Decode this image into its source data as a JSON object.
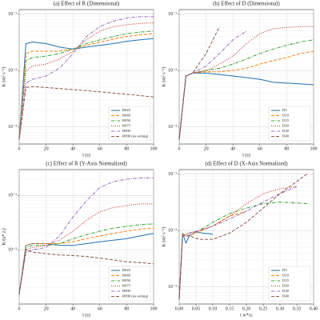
{
  "chart_data": [
    {
      "type": "line",
      "title": "(a) Effect of R (Dimensional)",
      "xlabel": "t (s)",
      "ylabel": "K (m² s⁻¹)",
      "log_y": true,
      "grid": true,
      "legend": "lower right",
      "xlim": [
        0,
        100
      ],
      "xticks": [
        0,
        20,
        40,
        60,
        80,
        100
      ],
      "ylim": [
        0.0005,
        0.12
      ],
      "yticks": [
        {
          "value": 0.001,
          "label": "10⁻³"
        },
        {
          "value": 0.01,
          "label": "10⁻²"
        },
        {
          "value": 0.1,
          "label": "10⁻¹"
        }
      ],
      "x": [
        0,
        5,
        10,
        20,
        30,
        40,
        50,
        60,
        70,
        80,
        90,
        100
      ],
      "series": [
        {
          "name": "R025",
          "color": "#1f6fb4",
          "linestyle": "solid",
          "values": [
            0.0006,
            0.03,
            0.032,
            0.03,
            0.026,
            0.024,
            0.026,
            0.028,
            0.03,
            0.033,
            0.035,
            0.037
          ]
        },
        {
          "name": "R040",
          "color": "#ff7f0e",
          "linestyle": "dashed",
          "values": [
            0.0006,
            0.02,
            0.022,
            0.022,
            0.022,
            0.024,
            0.028,
            0.032,
            0.036,
            0.04,
            0.043,
            0.045
          ]
        },
        {
          "name": "R050",
          "color": "#2ca02c",
          "linestyle": "dashdot",
          "values": [
            0.0006,
            0.015,
            0.017,
            0.018,
            0.02,
            0.024,
            0.03,
            0.035,
            0.04,
            0.045,
            0.048,
            0.05
          ]
        },
        {
          "name": "R075",
          "color": "#d62728",
          "linestyle": "dotted",
          "values": [
            0.0006,
            0.01,
            0.012,
            0.013,
            0.016,
            0.022,
            0.035,
            0.05,
            0.06,
            0.065,
            0.068,
            0.07
          ]
        },
        {
          "name": "R090",
          "color": "#9467bd",
          "linestyle": "dashdot",
          "values": [
            0.0006,
            0.006,
            0.007,
            0.008,
            0.011,
            0.02,
            0.04,
            0.06,
            0.075,
            0.085,
            0.09,
            0.09
          ]
        },
        {
          "name": "R090 (no setting)",
          "color": "#8c564b",
          "linestyle": "dashed",
          "values": [
            0.0006,
            0.005,
            0.0052,
            0.005,
            0.0048,
            0.0046,
            0.0044,
            0.0042,
            0.004,
            0.0038,
            0.0036,
            0.0034
          ]
        }
      ]
    },
    {
      "type": "line",
      "title": "(b) Effect of D (Dimensional)",
      "xlabel": "t (s)",
      "ylabel": "K (m² s⁻¹)",
      "log_y": true,
      "grid": true,
      "legend": "lower right",
      "xlim": [
        0,
        100
      ],
      "xticks": [
        0,
        20,
        40,
        60,
        80,
        100
      ],
      "ylim": [
        0.0005,
        0.12
      ],
      "yticks": [
        {
          "value": 0.001,
          "label": "10⁻³"
        },
        {
          "value": 0.01,
          "label": "10⁻²"
        },
        {
          "value": 0.1,
          "label": "10⁻¹"
        }
      ],
      "x": [
        0,
        5,
        10,
        20,
        30,
        40,
        50,
        60,
        70,
        80,
        90,
        100
      ],
      "series": [
        {
          "name": "D5",
          "color": "#1f6fb4",
          "linestyle": "solid",
          "values": [
            0.0006,
            0.008,
            0.009,
            0.009,
            0.0085,
            0.008,
            0.0075,
            0.007,
            0.0062,
            0.006,
            0.0058,
            0.0056
          ]
        },
        {
          "name": "D10",
          "color": "#ff7f0e",
          "linestyle": "dashed",
          "values": [
            0.0006,
            0.008,
            0.009,
            0.0095,
            0.0095,
            0.01,
            0.011,
            0.013,
            0.015,
            0.017,
            0.02,
            0.022
          ]
        },
        {
          "name": "D15",
          "color": "#2ca02c",
          "linestyle": "dashdot",
          "values": [
            0.0006,
            0.008,
            0.009,
            0.01,
            0.011,
            0.013,
            0.016,
            0.02,
            0.024,
            0.028,
            0.032,
            0.035
          ]
        },
        {
          "name": "D20",
          "color": "#d62728",
          "linestyle": "dotted",
          "values": [
            0.0006,
            0.008,
            0.009,
            0.01,
            0.013,
            0.018,
            0.03,
            0.045,
            0.055,
            0.058,
            0.06,
            0.06
          ]
        },
        {
          "name": "D30",
          "color": "#9467bd",
          "linestyle": "dashdot",
          "values": [
            0.0006,
            0.008,
            0.009,
            0.012,
            0.02,
            0.035,
            0.05,
            null,
            null,
            null,
            null,
            null
          ]
        },
        {
          "name": "D40",
          "color": "#8c564b",
          "linestyle": "dashed",
          "values": [
            0.0006,
            0.008,
            0.009,
            0.02,
            0.06,
            null,
            null,
            null,
            null,
            null,
            null,
            null
          ]
        }
      ]
    },
    {
      "type": "line",
      "title": "(c) Effect of R (Y-Axis Normalized)",
      "xlabel": "t (s)",
      "ylabel": "K/(u* zᵢ)",
      "log_y": true,
      "grid": true,
      "legend": "lower right",
      "xlim": [
        0,
        100
      ],
      "xticks": [
        0,
        20,
        40,
        60,
        80,
        100
      ],
      "ylim": [
        0.001,
        0.3
      ],
      "yticks": [
        {
          "value": 0.01,
          "label": "10⁻²"
        },
        {
          "value": 0.1,
          "label": "10⁻¹"
        }
      ],
      "x": [
        0,
        5,
        10,
        20,
        30,
        40,
        50,
        60,
        70,
        80,
        90,
        100
      ],
      "series": [
        {
          "name": "R025",
          "color": "#1f6fb4",
          "linestyle": "solid",
          "values": [
            0.0015,
            0.012,
            0.013,
            0.013,
            0.012,
            0.012,
            0.013,
            0.014,
            0.015,
            0.016,
            0.018,
            0.02
          ]
        },
        {
          "name": "R040",
          "color": "#ff7f0e",
          "linestyle": "dashed",
          "values": [
            0.0015,
            0.012,
            0.013,
            0.013,
            0.013,
            0.014,
            0.016,
            0.018,
            0.02,
            0.022,
            0.024,
            0.025
          ]
        },
        {
          "name": "R050",
          "color": "#2ca02c",
          "linestyle": "dashdot",
          "values": [
            0.0015,
            0.011,
            0.012,
            0.012,
            0.013,
            0.016,
            0.019,
            0.022,
            0.025,
            0.027,
            0.029,
            0.03
          ]
        },
        {
          "name": "R075",
          "color": "#d62728",
          "linestyle": "dotted",
          "values": [
            0.0015,
            0.01,
            0.011,
            0.012,
            0.015,
            0.022,
            0.035,
            0.05,
            0.06,
            0.065,
            0.07,
            0.07
          ]
        },
        {
          "name": "R090",
          "color": "#9467bd",
          "linestyle": "dashdot",
          "values": [
            0.0015,
            0.009,
            0.01,
            0.011,
            0.018,
            0.04,
            0.08,
            0.14,
            0.18,
            0.2,
            0.21,
            0.21
          ]
        },
        {
          "name": "R090 (no setting)",
          "color": "#8c564b",
          "linestyle": "dashed",
          "values": [
            0.0015,
            0.01,
            0.009,
            0.0085,
            0.008,
            0.0078,
            0.0075,
            0.007,
            0.0065,
            0.006,
            0.0058,
            0.0055
          ]
        }
      ]
    },
    {
      "type": "line",
      "title": "(d) Effect of D (X-Axis Normalized)",
      "xlabel": "t w*/zᵢ",
      "ylabel": "K (m² s⁻¹)",
      "log_y": true,
      "grid": true,
      "legend": "lower right",
      "xlim": [
        0,
        0.4
      ],
      "xticks": [
        {
          "value": 0,
          "label": "0.00"
        },
        {
          "value": 0.05,
          "label": "0.05"
        },
        {
          "value": 0.1,
          "label": "0.10"
        },
        {
          "value": 0.15,
          "label": "0.15"
        },
        {
          "value": 0.2,
          "label": "0.20"
        },
        {
          "value": 0.25,
          "label": "0.25"
        },
        {
          "value": 0.3,
          "label": "0.30"
        },
        {
          "value": 0.35,
          "label": "0.35"
        },
        {
          "value": 0.4,
          "label": "0.40"
        }
      ],
      "ylim": [
        0.0005,
        0.12
      ],
      "yticks": [
        {
          "value": 0.001,
          "label": "10⁻³"
        },
        {
          "value": 0.01,
          "label": "10⁻²"
        },
        {
          "value": 0.1,
          "label": "10⁻¹"
        }
      ],
      "series": [
        {
          "name": "D5",
          "color": "#1f6fb4",
          "linestyle": "solid",
          "x": [
            0,
            0.01,
            0.02,
            0.03,
            0.05,
            0.07,
            0.09,
            0.1
          ],
          "values": [
            0.0006,
            0.009,
            0.006,
            0.008,
            0.0095,
            0.009,
            0.0088,
            0.0085
          ]
        },
        {
          "name": "D10",
          "color": "#ff7f0e",
          "linestyle": "dashed",
          "x": [
            0,
            0.01,
            0.02,
            0.05,
            0.1,
            0.15,
            0.2
          ],
          "values": [
            0.0006,
            0.009,
            0.008,
            0.009,
            0.012,
            0.018,
            0.022
          ]
        },
        {
          "name": "D15",
          "color": "#2ca02c",
          "linestyle": "dashdot",
          "x": [
            0,
            0.01,
            0.03,
            0.06,
            0.1,
            0.15,
            0.2,
            0.25,
            0.3,
            0.38
          ],
          "values": [
            0.0006,
            0.008,
            0.009,
            0.01,
            0.014,
            0.02,
            0.025,
            0.03,
            0.032,
            0.03
          ]
        },
        {
          "name": "D20",
          "color": "#d62728",
          "linestyle": "dotted",
          "x": [
            0,
            0.01,
            0.03,
            0.06,
            0.1,
            0.15,
            0.2,
            0.25,
            0.3,
            0.35
          ],
          "values": [
            0.0006,
            0.008,
            0.009,
            0.01,
            0.012,
            0.018,
            0.03,
            0.045,
            0.055,
            0.06
          ]
        },
        {
          "name": "D30",
          "color": "#9467bd",
          "linestyle": "dashdot",
          "x": [
            0,
            0.01,
            0.03,
            0.06,
            0.1,
            0.15,
            0.2,
            0.25,
            0.3,
            0.35
          ],
          "values": [
            0.0006,
            0.008,
            0.009,
            0.01,
            0.012,
            0.016,
            0.022,
            0.032,
            0.045,
            0.06
          ]
        },
        {
          "name": "D40",
          "color": "#8c564b",
          "linestyle": "dashed",
          "x": [
            0,
            0.01,
            0.03,
            0.06,
            0.1,
            0.15,
            0.2,
            0.25,
            0.3,
            0.38
          ],
          "values": [
            0.0006,
            0.008,
            0.008,
            0.007,
            0.007,
            0.009,
            0.014,
            0.025,
            0.045,
            0.1
          ]
        }
      ]
    }
  ]
}
